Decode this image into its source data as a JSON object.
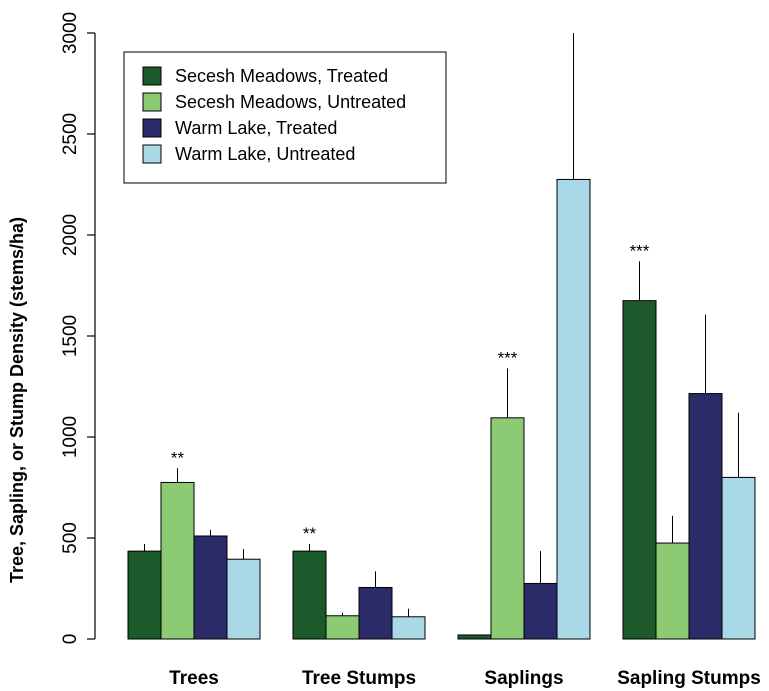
{
  "chart_data": {
    "type": "bar",
    "title": "",
    "xlabel": "",
    "ylabel": "Tree, Sapling, or Stump Density (stems/ha)",
    "ylim": [
      0,
      3000
    ],
    "yticks": [
      0,
      500,
      1000,
      1500,
      2000,
      2500,
      3000
    ],
    "categories": [
      "Trees",
      "Tree Stumps",
      "Saplings",
      "Sapling Stumps"
    ],
    "series": [
      {
        "name": "Secesh Meadows, Treated",
        "color": "#1d5a2b",
        "values": [
          435,
          435,
          20,
          1675
        ],
        "error": [
          35,
          35,
          0,
          195
        ]
      },
      {
        "name": "Secesh Meadows, Untreated",
        "color": "#8dca74",
        "values": [
          775,
          115,
          1095,
          475
        ],
        "error": [
          70,
          15,
          245,
          135
        ]
      },
      {
        "name": "Warm Lake, Treated",
        "color": "#2b2b6a",
        "values": [
          510,
          255,
          275,
          1215
        ],
        "error": [
          30,
          80,
          160,
          390
        ]
      },
      {
        "name": "Warm Lake, Untreated",
        "color": "#a9d8e6",
        "values": [
          395,
          110,
          2275,
          800
        ],
        "error": [
          50,
          40,
          725,
          320
        ]
      }
    ],
    "annotations": [
      {
        "category": "Trees",
        "text": "**"
      },
      {
        "category": "Tree Stumps",
        "text": "**"
      },
      {
        "category": "Saplings",
        "text": "***"
      },
      {
        "category": "Sapling Stumps",
        "text": "***"
      }
    ],
    "legend_position": "top-left",
    "grid": false
  }
}
